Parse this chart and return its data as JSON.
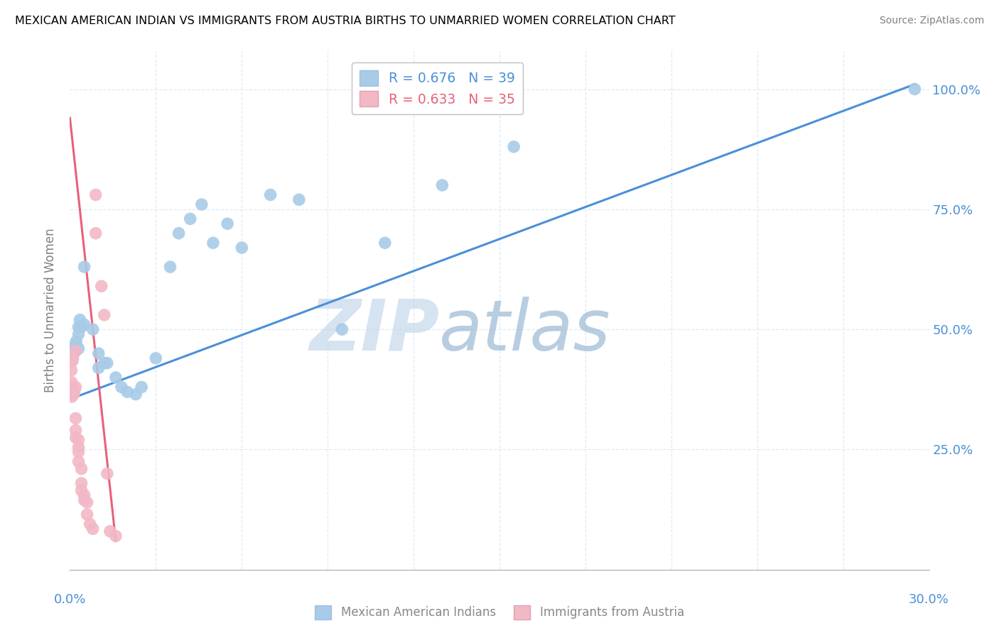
{
  "title": "MEXICAN AMERICAN INDIAN VS IMMIGRANTS FROM AUSTRIA BIRTHS TO UNMARRIED WOMEN CORRELATION CHART",
  "source": "Source: ZipAtlas.com",
  "ylabel": "Births to Unmarried Women",
  "ytick_vals": [
    0.25,
    0.5,
    0.75,
    1.0
  ],
  "ytick_labels": [
    "25.0%",
    "50.0%",
    "75.0%",
    "100.0%"
  ],
  "legend1_label": "R = 0.676   N = 39",
  "legend2_label": "R = 0.633   N = 35",
  "blue_color": "#A8CBE8",
  "pink_color": "#F2B8C6",
  "line_blue": "#4A90D9",
  "line_pink": "#E8607A",
  "text_blue": "#4A90D9",
  "watermark_zip": "ZIP",
  "watermark_atlas": "atlas",
  "watermark_color_zip": "#C5D8EC",
  "watermark_color_atlas": "#9AB8D4",
  "legend_label1": "Mexican American Indians",
  "legend_label2": "Immigrants from Austria",
  "blue_dots": [
    [
      0.0008,
      0.435
    ],
    [
      0.001,
      0.44
    ],
    [
      0.0012,
      0.46
    ],
    [
      0.0015,
      0.455
    ],
    [
      0.002,
      0.47
    ],
    [
      0.002,
      0.455
    ],
    [
      0.0022,
      0.475
    ],
    [
      0.003,
      0.505
    ],
    [
      0.003,
      0.49
    ],
    [
      0.003,
      0.46
    ],
    [
      0.0035,
      0.52
    ],
    [
      0.004,
      0.505
    ],
    [
      0.005,
      0.63
    ],
    [
      0.005,
      0.51
    ],
    [
      0.008,
      0.5
    ],
    [
      0.01,
      0.45
    ],
    [
      0.01,
      0.42
    ],
    [
      0.012,
      0.43
    ],
    [
      0.013,
      0.43
    ],
    [
      0.016,
      0.4
    ],
    [
      0.018,
      0.38
    ],
    [
      0.02,
      0.37
    ],
    [
      0.023,
      0.365
    ],
    [
      0.025,
      0.38
    ],
    [
      0.03,
      0.44
    ],
    [
      0.035,
      0.63
    ],
    [
      0.038,
      0.7
    ],
    [
      0.042,
      0.73
    ],
    [
      0.046,
      0.76
    ],
    [
      0.05,
      0.68
    ],
    [
      0.055,
      0.72
    ],
    [
      0.06,
      0.67
    ],
    [
      0.07,
      0.78
    ],
    [
      0.08,
      0.77
    ],
    [
      0.095,
      0.5
    ],
    [
      0.11,
      0.68
    ],
    [
      0.13,
      0.8
    ],
    [
      0.155,
      0.88
    ],
    [
      0.295,
      1.0
    ]
  ],
  "pink_dots": [
    [
      0.0005,
      0.435
    ],
    [
      0.0005,
      0.415
    ],
    [
      0.0006,
      0.39
    ],
    [
      0.0007,
      0.36
    ],
    [
      0.0008,
      0.435
    ],
    [
      0.001,
      0.44
    ],
    [
      0.001,
      0.38
    ],
    [
      0.0012,
      0.37
    ],
    [
      0.0013,
      0.365
    ],
    [
      0.0015,
      0.37
    ],
    [
      0.002,
      0.455
    ],
    [
      0.002,
      0.38
    ],
    [
      0.002,
      0.315
    ],
    [
      0.002,
      0.29
    ],
    [
      0.002,
      0.275
    ],
    [
      0.003,
      0.27
    ],
    [
      0.003,
      0.255
    ],
    [
      0.003,
      0.245
    ],
    [
      0.003,
      0.225
    ],
    [
      0.004,
      0.21
    ],
    [
      0.004,
      0.18
    ],
    [
      0.004,
      0.165
    ],
    [
      0.005,
      0.155
    ],
    [
      0.005,
      0.145
    ],
    [
      0.006,
      0.14
    ],
    [
      0.006,
      0.115
    ],
    [
      0.007,
      0.095
    ],
    [
      0.008,
      0.085
    ],
    [
      0.009,
      0.78
    ],
    [
      0.009,
      0.7
    ],
    [
      0.011,
      0.59
    ],
    [
      0.012,
      0.53
    ],
    [
      0.013,
      0.2
    ],
    [
      0.014,
      0.08
    ],
    [
      0.016,
      0.07
    ]
  ],
  "blue_line": {
    "x0": 0.0,
    "y0": 0.355,
    "x1": 0.295,
    "y1": 1.01
  },
  "pink_line": {
    "x0": 0.0,
    "y0": 0.94,
    "x1": 0.016,
    "y1": 0.06
  },
  "xlim": [
    0.0,
    0.3
  ],
  "ylim": [
    0.0,
    1.08
  ],
  "xtick_left_label": "0.0%",
  "xtick_right_label": "30.0%",
  "grid_color": "#DDEAF5",
  "grid_style": "--"
}
